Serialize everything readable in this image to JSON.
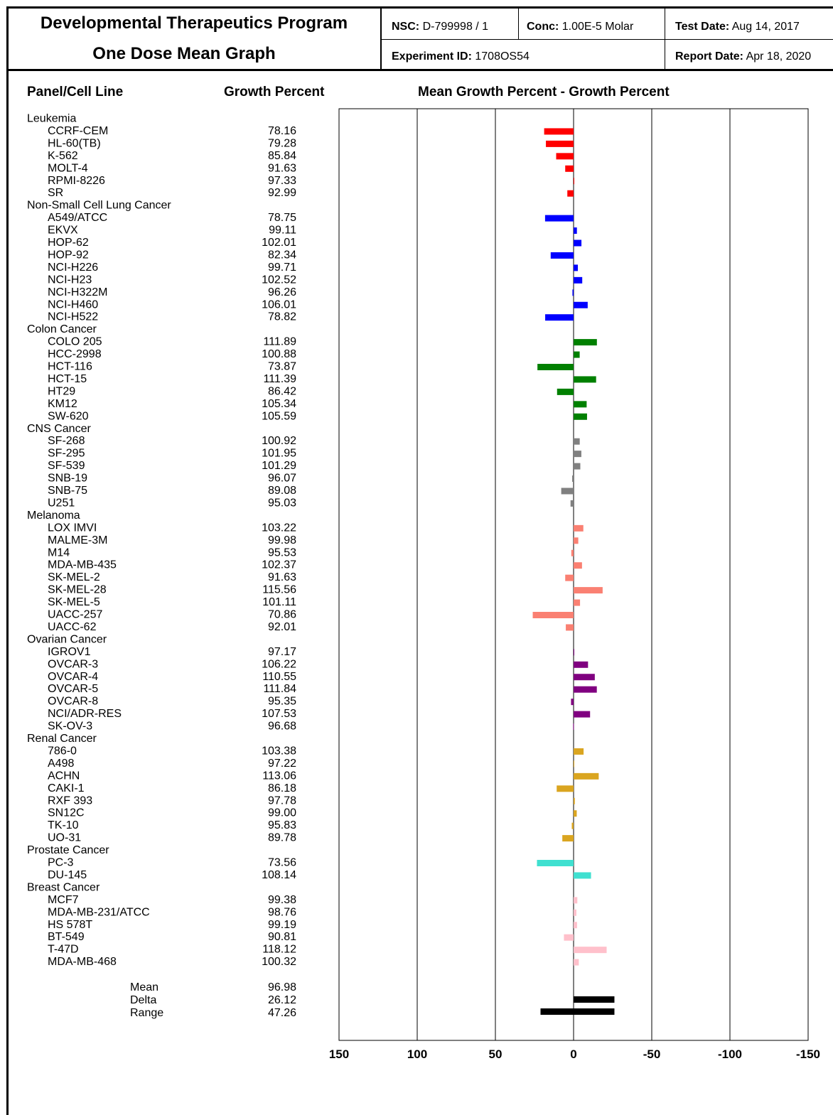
{
  "header": {
    "title_line1": "Developmental Therapeutics Program",
    "title_line2": "One Dose Mean Graph",
    "nsc_label": "NSC:",
    "nsc_value": "D-799998 / 1",
    "conc_label": "Conc:",
    "conc_value": "1.00E-5 Molar",
    "test_date_label": "Test Date:",
    "test_date_value": "Aug 14, 2017",
    "experiment_label": "Experiment ID:",
    "experiment_value": "1708OS54",
    "report_date_label": "Report Date:",
    "report_date_value": "Apr 18, 2020"
  },
  "columns": {
    "panel": "Panel/Cell Line",
    "growth": "Growth Percent",
    "mean_growth": "Mean Growth Percent - Growth Percent"
  },
  "chart_data": {
    "type": "bar",
    "orientation": "horizontal",
    "mean": 96.98,
    "xlim": [
      150,
      -150
    ],
    "ticks": [
      150,
      100,
      50,
      0,
      -50,
      -100,
      -150
    ],
    "tick_labels": [
      "150",
      "100",
      "50",
      "0",
      "-50",
      "-100",
      "-150"
    ],
    "panels": [
      {
        "name": "Leukemia",
        "color": "#ff0000",
        "cells": [
          {
            "name": "CCRF-CEM",
            "value": "78.16"
          },
          {
            "name": "HL-60(TB)",
            "value": "79.28"
          },
          {
            "name": "K-562",
            "value": "85.84"
          },
          {
            "name": "MOLT-4",
            "value": "91.63"
          },
          {
            "name": "RPMI-8226",
            "value": "97.33"
          },
          {
            "name": "SR",
            "value": "92.99"
          }
        ]
      },
      {
        "name": "Non-Small Cell Lung Cancer",
        "color": "#0000ff",
        "cells": [
          {
            "name": "A549/ATCC",
            "value": "78.75"
          },
          {
            "name": "EKVX",
            "value": "99.11"
          },
          {
            "name": "HOP-62",
            "value": "102.01"
          },
          {
            "name": "HOP-92",
            "value": "82.34"
          },
          {
            "name": "NCI-H226",
            "value": "99.71"
          },
          {
            "name": "NCI-H23",
            "value": "102.52"
          },
          {
            "name": "NCI-H322M",
            "value": "96.26"
          },
          {
            "name": "NCI-H460",
            "value": "106.01"
          },
          {
            "name": "NCI-H522",
            "value": "78.82"
          }
        ]
      },
      {
        "name": "Colon Cancer",
        "color": "#008000",
        "cells": [
          {
            "name": "COLO 205",
            "value": "111.89"
          },
          {
            "name": "HCC-2998",
            "value": "100.88"
          },
          {
            "name": "HCT-116",
            "value": "73.87"
          },
          {
            "name": "HCT-15",
            "value": "111.39"
          },
          {
            "name": "HT29",
            "value": "86.42"
          },
          {
            "name": "KM12",
            "value": "105.34"
          },
          {
            "name": "SW-620",
            "value": "105.59"
          }
        ]
      },
      {
        "name": "CNS Cancer",
        "color": "#808080",
        "cells": [
          {
            "name": "SF-268",
            "value": "100.92"
          },
          {
            "name": "SF-295",
            "value": "101.95"
          },
          {
            "name": "SF-539",
            "value": "101.29"
          },
          {
            "name": "SNB-19",
            "value": "96.07"
          },
          {
            "name": "SNB-75",
            "value": "89.08"
          },
          {
            "name": "U251",
            "value": "95.03"
          }
        ]
      },
      {
        "name": "Melanoma",
        "color": "#fa8072",
        "cells": [
          {
            "name": "LOX IMVI",
            "value": "103.22"
          },
          {
            "name": "MALME-3M",
            "value": "99.98"
          },
          {
            "name": "M14",
            "value": "95.53"
          },
          {
            "name": "MDA-MB-435",
            "value": "102.37"
          },
          {
            "name": "SK-MEL-2",
            "value": "91.63"
          },
          {
            "name": "SK-MEL-28",
            "value": "115.56"
          },
          {
            "name": "SK-MEL-5",
            "value": "101.11"
          },
          {
            "name": "UACC-257",
            "value": "70.86"
          },
          {
            "name": "UACC-62",
            "value": "92.01"
          }
        ]
      },
      {
        "name": "Ovarian Cancer",
        "color": "#800080",
        "cells": [
          {
            "name": "IGROV1",
            "value": "97.17"
          },
          {
            "name": "OVCAR-3",
            "value": "106.22"
          },
          {
            "name": "OVCAR-4",
            "value": "110.55"
          },
          {
            "name": "OVCAR-5",
            "value": "111.84"
          },
          {
            "name": "OVCAR-8",
            "value": "95.35"
          },
          {
            "name": "NCI/ADR-RES",
            "value": "107.53"
          },
          {
            "name": "SK-OV-3",
            "value": "96.68"
          }
        ]
      },
      {
        "name": "Renal Cancer",
        "color": "#daa520",
        "cells": [
          {
            "name": "786-0",
            "value": "103.38"
          },
          {
            "name": "A498",
            "value": "97.22"
          },
          {
            "name": "ACHN",
            "value": "113.06"
          },
          {
            "name": "CAKI-1",
            "value": "86.18"
          },
          {
            "name": "RXF 393",
            "value": "97.78"
          },
          {
            "name": "SN12C",
            "value": "99.00"
          },
          {
            "name": "TK-10",
            "value": "95.83"
          },
          {
            "name": "UO-31",
            "value": "89.78"
          }
        ]
      },
      {
        "name": "Prostate Cancer",
        "color": "#40e0d0",
        "cells": [
          {
            "name": "PC-3",
            "value": "73.56"
          },
          {
            "name": "DU-145",
            "value": "108.14"
          }
        ]
      },
      {
        "name": "Breast Cancer",
        "color": "#ffc0cb",
        "cells": [
          {
            "name": "MCF7",
            "value": "99.38"
          },
          {
            "name": "MDA-MB-231/ATCC",
            "value": "98.76"
          },
          {
            "name": "HS 578T",
            "value": "99.19"
          },
          {
            "name": "BT-549",
            "value": "90.81"
          },
          {
            "name": "T-47D",
            "value": "118.12"
          },
          {
            "name": "MDA-MB-468",
            "value": "100.32"
          }
        ]
      }
    ],
    "summary": [
      {
        "name": "Mean",
        "value": "96.98"
      },
      {
        "name": "Delta",
        "value": "26.12"
      },
      {
        "name": "Range",
        "value": "47.26"
      }
    ],
    "summary_bars": {
      "color": "#000000",
      "delta_from": 0,
      "delta_to": -26.12,
      "range_from": 21.14,
      "range_to": -26.12
    }
  }
}
